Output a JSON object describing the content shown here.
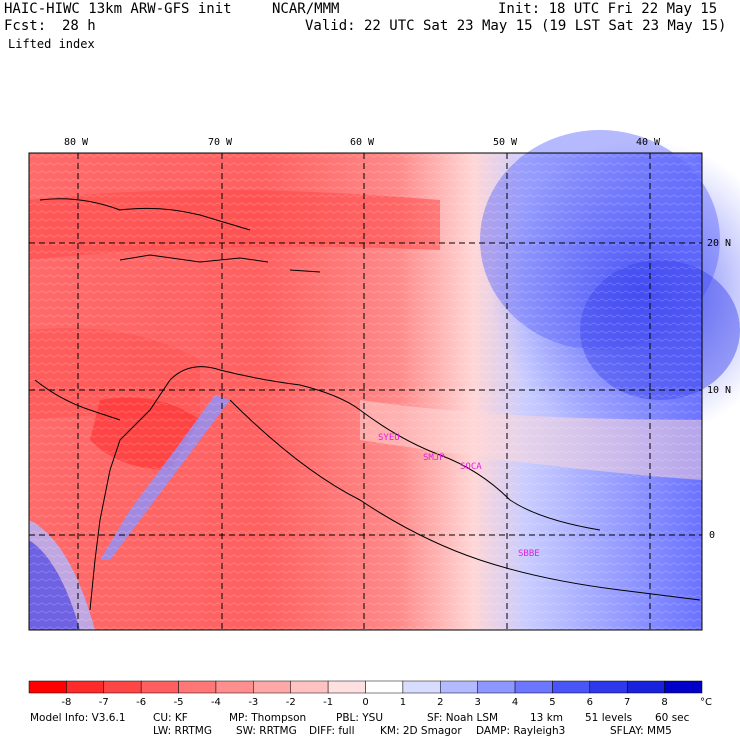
{
  "header": {
    "model_title": "HAIC-HIWC 13km ARW-GFS init",
    "org": "NCAR/MMM",
    "init": "Init: 18 UTC Fri 22 May 15",
    "fcst_label": "Fcst:",
    "fcst_hours": "28 h",
    "valid": "Valid: 22 UTC Sat 23 May 15 (19 LST Sat 23 May 15)",
    "field": "Lifted index"
  },
  "map": {
    "lon_labels": [
      "80 W",
      "70 W",
      "60 W",
      "50 W",
      "40 W"
    ],
    "lat_labels": [
      "20 N",
      "10 N",
      "0"
    ],
    "stations": [
      "SYEU",
      "SMJP",
      "SOCA",
      "SBBE"
    ],
    "colors": {
      "stable_blue": "#3f55e8",
      "unstable_red": "#ff4a4a",
      "station_magenta": "#e020e0"
    }
  },
  "colorbar": {
    "tick_labels": [
      "-8",
      "-7",
      "-6",
      "-5",
      "-4",
      "-3",
      "-2",
      "-1",
      "0",
      "1",
      "2",
      "3",
      "4",
      "5",
      "6",
      "7",
      "8"
    ],
    "unit": "°C",
    "colors": [
      "#ff0000",
      "#ff2a2a",
      "#ff4646",
      "#ff5f5f",
      "#ff7777",
      "#ff8f8f",
      "#ffa8a8",
      "#ffc2c2",
      "#ffe0e0",
      "#ffffff",
      "#d8dcff",
      "#b4baff",
      "#8e97ff",
      "#6c76ff",
      "#4a55f8",
      "#2f39ec",
      "#1822dd",
      "#0000c8"
    ]
  },
  "footer": {
    "line1": {
      "model_info": "Model Info: V3.6.1",
      "cu": "CU: KF",
      "mp": "MP: Thompson",
      "pbl": "PBL: YSU",
      "sf": "SF: Noah LSM",
      "res": "13 km",
      "levels": "51 levels",
      "dt": "60 sec"
    },
    "line2": {
      "lw": "LW: RRTMG",
      "sw": "SW: RRTMG",
      "diff": "DIFF: full",
      "km": "KM: 2D Smagor",
      "damp": "DAMP: Rayleigh3",
      "sflay": "SFLAY: MM5"
    }
  }
}
